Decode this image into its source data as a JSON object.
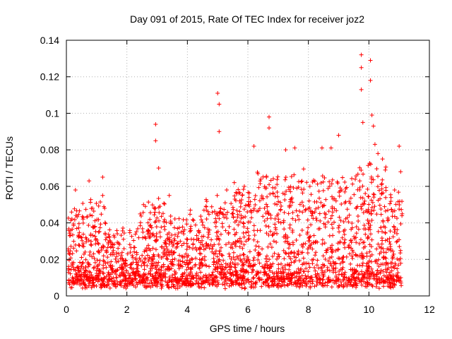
{
  "chart_data": {
    "type": "scatter",
    "title": "Day 091 of 2015, Rate Of TEC Index for receiver joz2",
    "xlabel": "GPS time / hours",
    "ylabel": "ROTI / TECUs",
    "xlim": [
      0,
      12
    ],
    "ylim": [
      0,
      0.14
    ],
    "xticks": [
      "0",
      "2",
      "4",
      "6",
      "8",
      "10",
      "12"
    ],
    "yticks": [
      "0",
      "0.02",
      "0.04",
      "0.06",
      "0.08",
      "0.1",
      "0.12",
      "0.14"
    ],
    "grid": true,
    "marker": "+",
    "series": [
      {
        "name": "ROTI",
        "color": "#ff0000",
        "x_range": [
          0.05,
          11.1
        ],
        "typical_y_range": [
          0.003,
          0.06
        ],
        "points": [
          [
            0.75,
            0.063
          ],
          [
            1.2,
            0.065
          ],
          [
            2.95,
            0.094
          ],
          [
            2.95,
            0.085
          ],
          [
            3.05,
            0.07
          ],
          [
            5.0,
            0.111
          ],
          [
            5.05,
            0.105
          ],
          [
            5.05,
            0.09
          ],
          [
            5.3,
            0.058
          ],
          [
            6.2,
            0.082
          ],
          [
            6.7,
            0.098
          ],
          [
            6.7,
            0.092
          ],
          [
            7.25,
            0.08
          ],
          [
            7.55,
            0.081
          ],
          [
            8.45,
            0.081
          ],
          [
            8.75,
            0.081
          ],
          [
            9.0,
            0.088
          ],
          [
            9.75,
            0.132
          ],
          [
            9.75,
            0.125
          ],
          [
            9.75,
            0.113
          ],
          [
            9.8,
            0.095
          ],
          [
            10.05,
            0.129
          ],
          [
            10.05,
            0.118
          ],
          [
            10.1,
            0.099
          ],
          [
            10.15,
            0.093
          ],
          [
            10.2,
            0.083
          ],
          [
            10.3,
            0.078
          ],
          [
            10.45,
            0.075
          ],
          [
            11.0,
            0.082
          ],
          [
            11.05,
            0.068
          ],
          [
            1.2,
            0.055
          ],
          [
            2.55,
            0.05
          ],
          [
            3.4,
            0.055
          ],
          [
            4.1,
            0.047
          ],
          [
            4.55,
            0.047
          ],
          [
            5.55,
            0.062
          ],
          [
            8.05,
            0.06
          ],
          [
            9.1,
            0.058
          ],
          [
            10.85,
            0.058
          ],
          [
            0.3,
            0.058
          ]
        ]
      }
    ]
  }
}
